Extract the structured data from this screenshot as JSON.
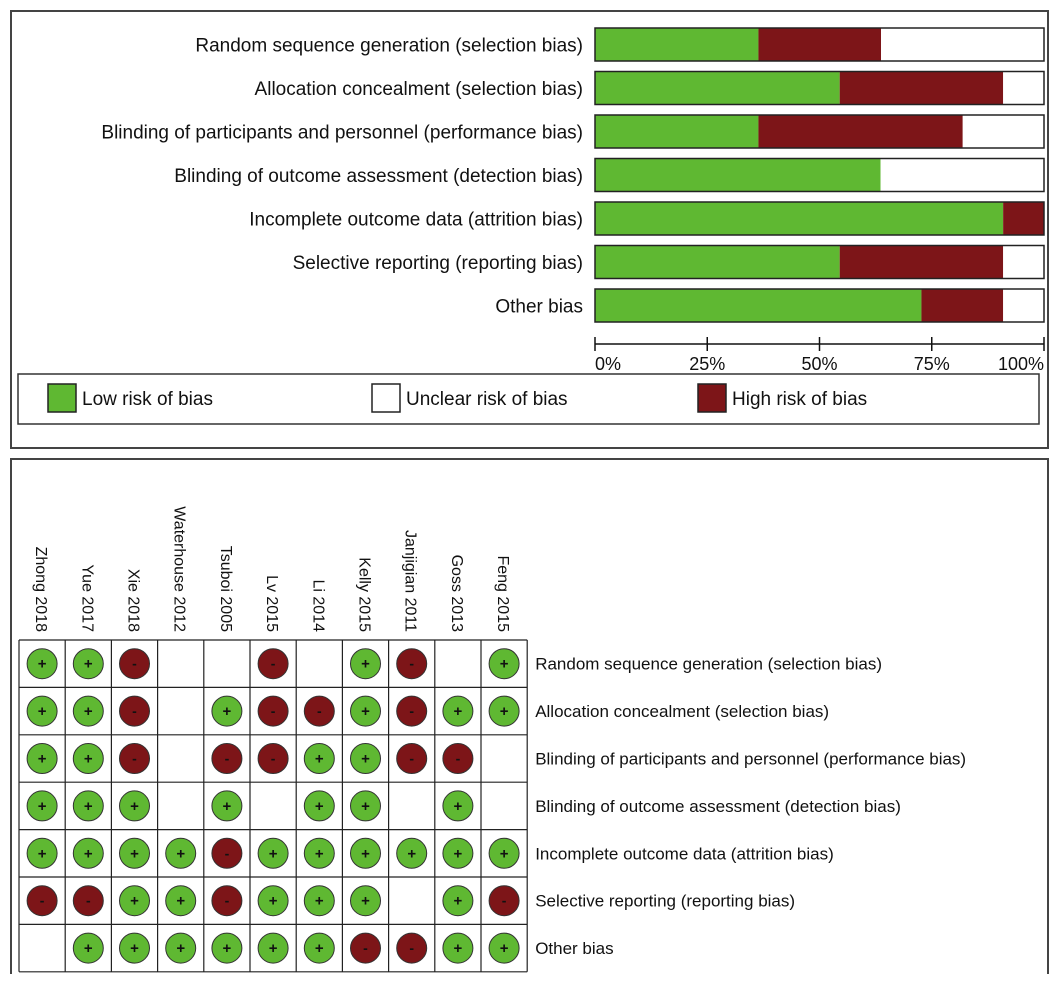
{
  "colors": {
    "low": "#5fb832",
    "unclear": "#ffffff",
    "high": "#7d1518"
  },
  "chart_data": [
    {
      "type": "bar",
      "orientation": "horizontal-stacked-percent",
      "categories": [
        "Random sequence generation (selection bias)",
        "Allocation concealment (selection bias)",
        "Blinding of participants and personnel (performance bias)",
        "Blinding of outcome assessment (detection bias)",
        "Incomplete outcome data (attrition bias)",
        "Selective reporting (reporting bias)",
        "Other bias"
      ],
      "series": [
        {
          "name": "Low risk of bias",
          "values": [
            36.4,
            54.5,
            36.4,
            63.6,
            90.9,
            54.5,
            72.7
          ]
        },
        {
          "name": "High risk of bias",
          "values": [
            27.3,
            36.4,
            45.5,
            0,
            9.1,
            36.4,
            18.2
          ]
        },
        {
          "name": "Unclear risk of bias",
          "values": [
            36.3,
            9.1,
            18.1,
            36.4,
            0,
            9.1,
            9.1
          ]
        }
      ],
      "xticks": [
        "0%",
        "25%",
        "50%",
        "75%",
        "100%"
      ],
      "xlim": [
        0,
        100
      ],
      "legend": [
        {
          "key": "low",
          "label": "Low risk of bias"
        },
        {
          "key": "unclear",
          "label": "Unclear risk of bias"
        },
        {
          "key": "high",
          "label": "High risk of bias"
        }
      ],
      "legend_position": "bottom"
    },
    {
      "type": "table",
      "studies": [
        "Zhong 2018",
        "Yue 2017",
        "Xie 2018",
        "Waterhouse 2012",
        "Tsuboi 2005",
        "Lv 2015",
        "Li 2014",
        "Kelly 2015",
        "Janjigian 2011",
        "Goss 2013",
        "Feng 2015"
      ],
      "domains": [
        "Random sequence generation (selection bias)",
        "Allocation concealment (selection bias)",
        "Blinding of participants and personnel (performance bias)",
        "Blinding of outcome assessment (detection bias)",
        "Incomplete outcome data (attrition bias)",
        "Selective reporting (reporting bias)",
        "Other bias"
      ],
      "cells": [
        [
          "low",
          "low",
          "high",
          "",
          "",
          "high",
          "",
          "low",
          "high",
          "",
          "low"
        ],
        [
          "low",
          "low",
          "high",
          "",
          "low",
          "high",
          "high",
          "low",
          "high",
          "low",
          "low"
        ],
        [
          "low",
          "low",
          "high",
          "",
          "high",
          "high",
          "low",
          "low",
          "high",
          "high",
          ""
        ],
        [
          "low",
          "low",
          "low",
          "",
          "low",
          "",
          "low",
          "low",
          "",
          "low",
          ""
        ],
        [
          "low",
          "low",
          "low",
          "low",
          "high",
          "low",
          "low",
          "low",
          "low",
          "low",
          "low"
        ],
        [
          "high",
          "high",
          "low",
          "low",
          "high",
          "low",
          "low",
          "low",
          "",
          "low",
          "high"
        ],
        [
          "",
          "low",
          "low",
          "low",
          "low",
          "low",
          "low",
          "high",
          "high",
          "low",
          "low"
        ]
      ]
    }
  ]
}
